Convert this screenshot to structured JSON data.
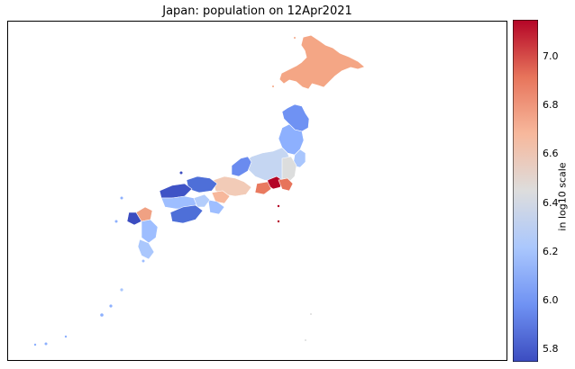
{
  "title": "Japan: population on 12Apr2021",
  "colorbar": {
    "label": "in log10 scale",
    "min": 5.75,
    "max": 7.15,
    "ticks": [
      "5.8",
      "6.0",
      "6.2",
      "6.4",
      "6.6",
      "6.8",
      "7.0"
    ],
    "colormap": "coolwarm",
    "stops": [
      "#3b4cc0",
      "#6f92f3",
      "#aac7fd",
      "#dddddd",
      "#f7b89c",
      "#e7745b",
      "#b40426"
    ]
  },
  "map": {
    "region": "Japan",
    "coloring": "prefecture population (log10)"
  }
}
